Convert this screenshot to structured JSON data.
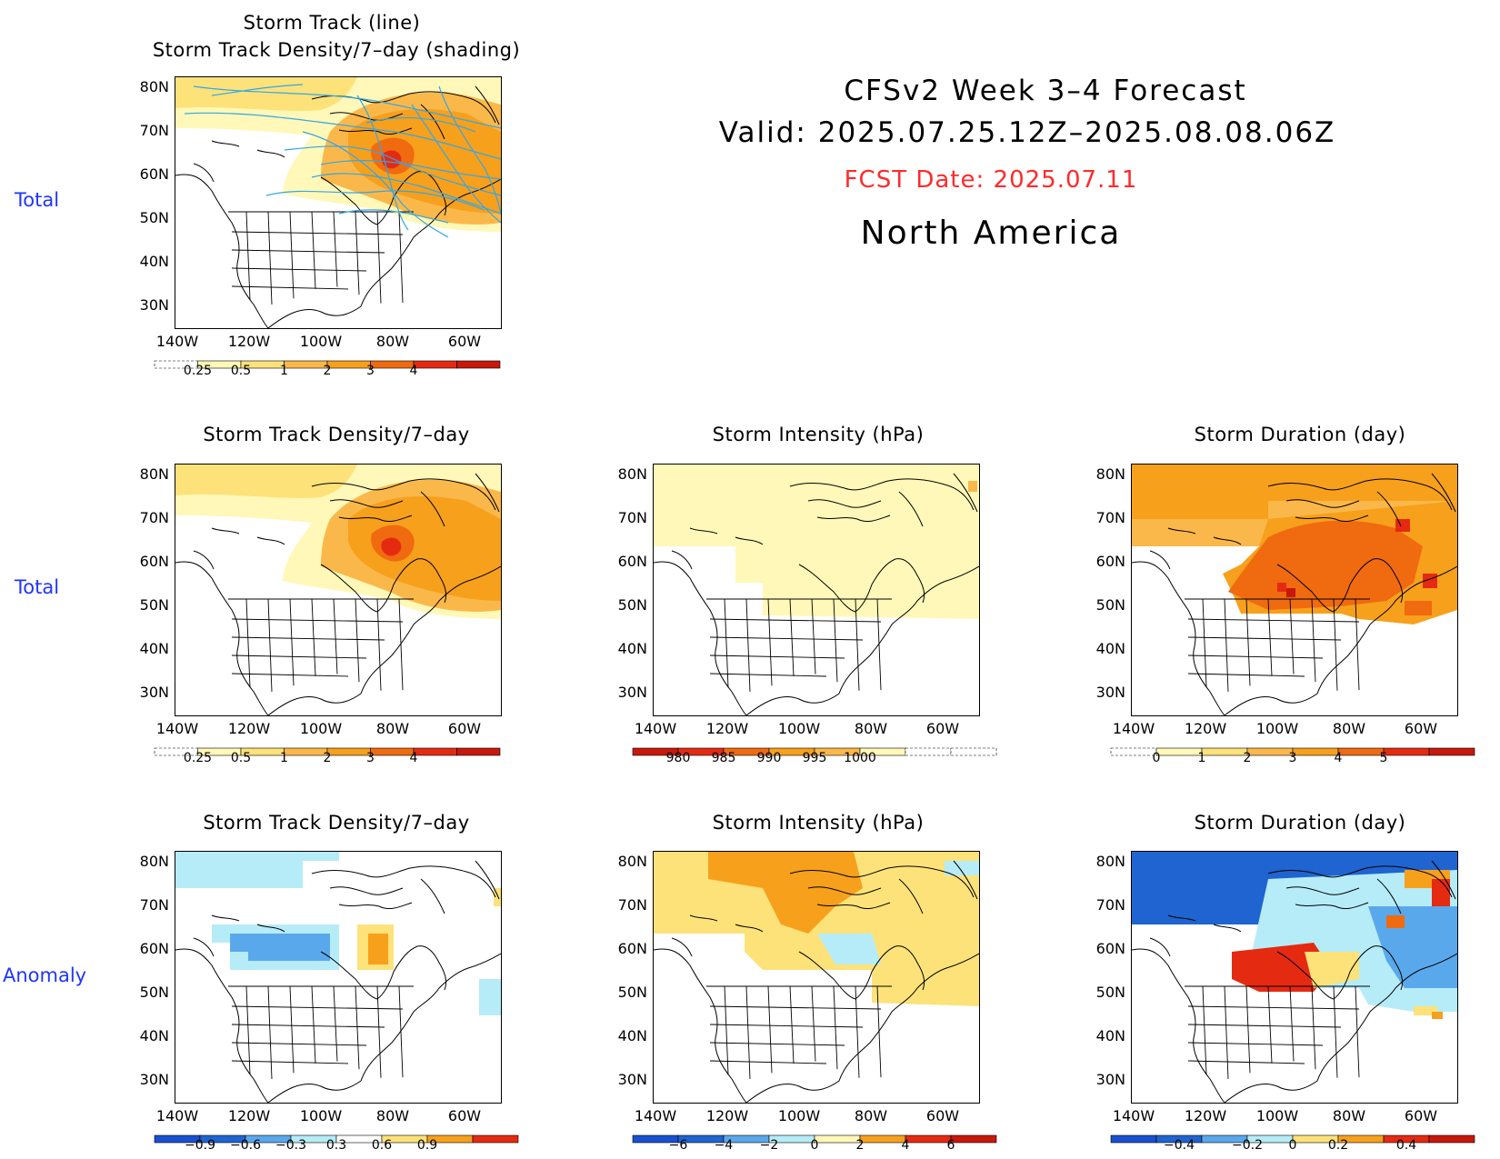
{
  "header": {
    "line1": "CFSv2 Week 3–4 Forecast",
    "line2": "Valid: 2025.07.25.12Z–2025.08.08.06Z",
    "fcst": "FCST Date: 2025.07.11",
    "region": "North America"
  },
  "row_labels": {
    "r1": "Total",
    "r2": "Total",
    "r3": "Anomaly"
  },
  "axes": {
    "lat": [
      "80N",
      "70N",
      "60N",
      "50N",
      "40N",
      "30N"
    ],
    "lon": [
      "140W",
      "120W",
      "100W",
      "80W",
      "60W"
    ]
  },
  "panels": {
    "p1": {
      "title1": "Storm Track (line)",
      "title2": "Storm Track Density/7–day (shading)"
    },
    "p2": {
      "title": "Storm Track Density/7–day"
    },
    "p3": {
      "title": "Storm Intensity (hPa)"
    },
    "p4": {
      "title": "Storm Duration (day)"
    },
    "p5": {
      "title": "Storm Track Density/7–day"
    },
    "p6": {
      "title": "Storm Intensity (hPa)"
    },
    "p7": {
      "title": "Storm Duration (day)"
    }
  },
  "colorbars": {
    "density": [
      "0.25",
      "0.5",
      "1",
      "2",
      "3",
      "4"
    ],
    "intensity": [
      "980",
      "985",
      "990",
      "995",
      "1000"
    ],
    "duration": [
      "0",
      "1",
      "2",
      "3",
      "4",
      "5"
    ],
    "density_anom": [
      "−0.9",
      "−0.6",
      "−0.3",
      "0.3",
      "0.6",
      "0.9"
    ],
    "intensity_anom": [
      "−6",
      "−4",
      "−2",
      "0",
      "2",
      "4",
      "6"
    ],
    "duration_anom": [
      "−0.4",
      "−0.2",
      "0",
      "0.2",
      "0.4"
    ]
  },
  "colors": {
    "light_yellow": "#fff8b8",
    "yellow": "#fde27a",
    "light_orange": "#fbb84a",
    "orange": "#f7a01c",
    "dark_orange": "#f06a10",
    "red": "#e52a12",
    "light_blue": "#b5ecf8",
    "mid_blue": "#5aa8ec",
    "dark_blue": "#1f64d0",
    "track_line": "#35a6e6",
    "row_label": "#1f35ff",
    "fcst_date": "#ff2a2a"
  }
}
